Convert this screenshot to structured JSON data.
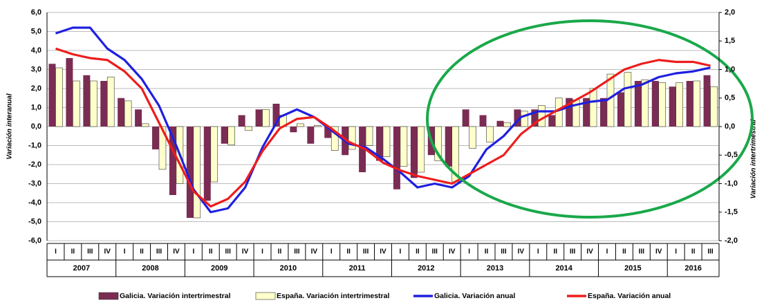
{
  "chart_data": {
    "type": "bar-line",
    "categories": [
      "I",
      "II",
      "III",
      "IV",
      "I",
      "II",
      "III",
      "IV",
      "I",
      "II",
      "III",
      "IV",
      "I",
      "II",
      "III",
      "IV",
      "I",
      "II",
      "III",
      "IV",
      "I",
      "II",
      "III",
      "IV",
      "I",
      "II",
      "III",
      "IV",
      "I",
      "II",
      "III",
      "IV",
      "I",
      "II",
      "III",
      "IV",
      "I",
      "II",
      "III"
    ],
    "years": [
      "2007",
      "2008",
      "2009",
      "2010",
      "2011",
      "2012",
      "2013",
      "2014",
      "2015",
      "2016"
    ],
    "y_label": "Variación interanual",
    "y2_label": "Variación intertrimestral",
    "ylim": [
      -6,
      6
    ],
    "yticks": [
      {
        "value": -6,
        "label": "-6,0"
      },
      {
        "value": -5,
        "label": "-5,0"
      },
      {
        "value": -4,
        "label": "-4,0"
      },
      {
        "value": -3,
        "label": "-3,0"
      },
      {
        "value": -2,
        "label": "-2,0"
      },
      {
        "value": -1,
        "label": "-1,0"
      },
      {
        "value": 0,
        "label": "0,0"
      },
      {
        "value": 1,
        "label": "1,0"
      },
      {
        "value": 2,
        "label": "2,0"
      },
      {
        "value": 3,
        "label": "3,0"
      },
      {
        "value": 4,
        "label": "4,0"
      },
      {
        "value": 5,
        "label": "5,0"
      },
      {
        "value": 6,
        "label": "6,0"
      }
    ],
    "y2lim": [
      -2,
      2
    ],
    "y2ticks": [
      {
        "value": -2,
        "label": "-2,0"
      },
      {
        "value": -1.5,
        "label": "-1,5"
      },
      {
        "value": -1,
        "label": "-1,0"
      },
      {
        "value": -0.5,
        "label": "-0,5"
      },
      {
        "value": 0,
        "label": "0,0"
      },
      {
        "value": 0.5,
        "label": "0,5"
      },
      {
        "value": 1,
        "label": "1,0"
      },
      {
        "value": 1.5,
        "label": "1,5"
      },
      {
        "value": 2,
        "label": "2,0"
      }
    ],
    "grid": true,
    "series": [
      {
        "name": "Galicia. Variación intertrimestral",
        "kind": "bar",
        "axis": "y2",
        "color": "#7b2c52",
        "values": [
          1.1,
          1.2,
          0.9,
          0.8,
          0.5,
          0.3,
          -0.4,
          -1.2,
          -1.6,
          -1.3,
          -0.3,
          0.2,
          0.3,
          0.4,
          -0.1,
          -0.3,
          -0.2,
          -0.5,
          -0.8,
          -0.6,
          -1.1,
          -0.9,
          -0.5,
          -0.7,
          0.3,
          0.2,
          0.1,
          0.3,
          0.3,
          0.2,
          0.5,
          0.5,
          0.5,
          0.6,
          0.8,
          0.8,
          0.7,
          0.8,
          0.9
        ]
      },
      {
        "name": "España. Variación intertrimestral",
        "kind": "bar",
        "axis": "y2",
        "color": "#ffffcc",
        "values": [
          1.03,
          0.8,
          0.8,
          0.87,
          0.45,
          0.05,
          -0.75,
          -1.0,
          -1.6,
          -0.97,
          -0.32,
          -0.07,
          0.3,
          0.2,
          0.05,
          0.02,
          -0.42,
          -0.4,
          -0.33,
          -0.53,
          -0.7,
          -0.8,
          -0.6,
          -0.97,
          -0.38,
          -0.27,
          0.07,
          0.27,
          0.37,
          0.5,
          0.47,
          0.67,
          0.92,
          0.95,
          0.82,
          0.77,
          0.77,
          0.8,
          0.7
        ]
      },
      {
        "name": "Galicia. Variación anual",
        "kind": "line",
        "color": "#1f1fe0",
        "values": [
          4.9,
          5.2,
          5.2,
          4.1,
          3.5,
          2.5,
          1.1,
          -1.0,
          -3.3,
          -4.5,
          -4.3,
          -3.2,
          -1.1,
          0.5,
          0.9,
          0.5,
          -0.2,
          -0.9,
          -1.1,
          -1.7,
          -2.4,
          -3.2,
          -3.0,
          -3.2,
          -2.6,
          -1.2,
          -0.5,
          0.5,
          0.8,
          0.8,
          1.1,
          1.3,
          1.4,
          2.0,
          2.2,
          2.6,
          2.8,
          2.9,
          3.1
        ]
      },
      {
        "name": "España. Variación anual",
        "kind": "line",
        "color": "#ee1c1c",
        "values": [
          4.1,
          3.8,
          3.6,
          3.5,
          2.9,
          2.0,
          0.2,
          -1.6,
          -3.4,
          -4.2,
          -3.8,
          -2.9,
          -1.3,
          -0.1,
          0.4,
          0.5,
          -0.1,
          -0.8,
          -1.2,
          -1.9,
          -2.3,
          -2.6,
          -2.8,
          -3.0,
          -2.5,
          -2.0,
          -1.5,
          -0.4,
          0.3,
          0.8,
          1.3,
          1.8,
          2.4,
          3.0,
          3.3,
          3.5,
          3.4,
          3.4,
          3.2
        ]
      }
    ]
  }
}
